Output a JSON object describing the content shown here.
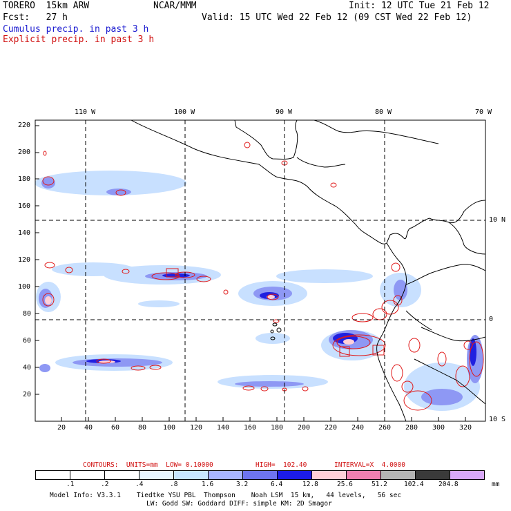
{
  "header": {
    "model": "TORERO  15km ARW",
    "org": "NCAR/MMM",
    "init": "Init: 12 UTC Tue 21 Feb 12",
    "fcst": "Fcst:   27 h",
    "valid": "Valid: 15 UTC Wed 22 Feb 12 (09 CST Wed 22 Feb 12)",
    "cumulus": "Cumulus precip. in past 3 h",
    "explicit": "Explicit precip. in past 3 h"
  },
  "top_axis": [
    "110 W",
    "100 W",
    "90 W",
    "80 W",
    "70 W"
  ],
  "right_axis": [
    "10 N",
    "0",
    "10 S"
  ],
  "left_axis": [
    "220",
    "200",
    "180",
    "160",
    "140",
    "120",
    "100",
    "80",
    "60",
    "40",
    "20"
  ],
  "bottom_axis": [
    "20",
    "40",
    "60",
    "80",
    "100",
    "120",
    "140",
    "160",
    "180",
    "200",
    "220",
    "240",
    "260",
    "280",
    "300",
    "320"
  ],
  "contours_line": {
    "label": "CONTOURS:  UNITS=mm  LOW= 0.10000",
    "high": "HIGH=  102.40",
    "interval": "INTERVAL=X  4.0000"
  },
  "colorbar": {
    "labels": [
      ".1",
      ".2",
      ".4",
      ".8",
      "1.6",
      "3.2",
      "6.4",
      "12.8",
      "25.6",
      "51.2",
      "102.4",
      "204.8"
    ],
    "unit": "mm",
    "colors": [
      "#ffffff",
      "#ffffff",
      "#ffffff",
      "#e8f6ff",
      "#c8e6ff",
      "#a8b4ff",
      "#6e74f0",
      "#1c1ce8",
      "#ffd0d8",
      "#f080b0",
      "#b4b4b4",
      "#3a3a3a",
      "#d8a8f8"
    ]
  },
  "footer": {
    "line1": "Model Info: V3.3.1    Tiedtke YSU PBL  Thompson    Noah LSM  15 km,   44 levels,   56 sec",
    "line2": "LW: Godd SW: Goddard DIFF: simple KM: 2D Smagor"
  }
}
